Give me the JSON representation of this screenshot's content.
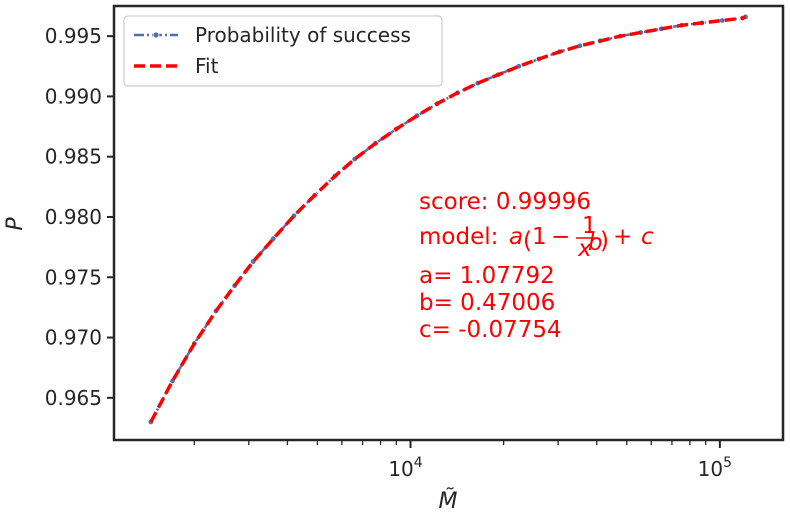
{
  "chart_data": {
    "type": "line",
    "xlabel": "M̃",
    "ylabel": "P",
    "xscale": "log",
    "xlim": [
      1100,
      160000
    ],
    "ylim": [
      0.9615,
      0.9975
    ],
    "x_ticks": [
      10000,
      100000
    ],
    "x_tick_labels": [
      {
        "base": "10",
        "exp": "4"
      },
      {
        "base": "10",
        "exp": "5"
      }
    ],
    "y_ticks": [
      0.965,
      0.97,
      0.975,
      0.98,
      0.985,
      0.99,
      0.995
    ],
    "y_tick_labels": [
      "0.965",
      "0.970",
      "0.975",
      "0.980",
      "0.985",
      "0.990",
      "0.995"
    ],
    "legend": {
      "placement": "top-left",
      "entries": [
        {
          "label": "Probability of success",
          "color": "#4c72b0",
          "style": "dashdot-marker"
        },
        {
          "label": "Fit",
          "color": "#ff0000",
          "style": "dashed"
        }
      ]
    },
    "series": [
      {
        "name": "Probability of success",
        "color": "#4c72b0",
        "x": [
          1448,
          1700,
          2000,
          2350,
          2700,
          3100,
          3600,
          4200,
          4900,
          5700,
          6600,
          7700,
          9000,
          10500,
          12200,
          14200,
          16500,
          19200,
          22400,
          26000,
          30300,
          35300,
          41000,
          47700,
          55500,
          64600,
          75200,
          87500,
          101800,
          118500,
          121000
        ],
        "y": [
          0.963,
          0.9664,
          0.9695,
          0.9722,
          0.9743,
          0.9763,
          0.9782,
          0.9801,
          0.9818,
          0.9834,
          0.9848,
          0.9861,
          0.9873,
          0.9884,
          0.9894,
          0.9903,
          0.9911,
          0.9918,
          0.9925,
          0.9931,
          0.9937,
          0.9942,
          0.9946,
          0.995,
          0.9953,
          0.9956,
          0.9959,
          0.9961,
          0.9963,
          0.9965,
          0.9966
        ]
      },
      {
        "name": "Fit",
        "color": "#ff0000",
        "x": [
          1448,
          1700,
          2000,
          2350,
          2700,
          3100,
          3600,
          4200,
          4900,
          5700,
          6600,
          7700,
          9000,
          10500,
          12200,
          14200,
          16500,
          19200,
          22400,
          26000,
          30300,
          35300,
          41000,
          47700,
          55500,
          64600,
          75200,
          87500,
          101800,
          118500,
          121000
        ],
        "y": [
          0.963,
          0.9664,
          0.9695,
          0.9722,
          0.9743,
          0.9763,
          0.9782,
          0.9801,
          0.9818,
          0.9834,
          0.9848,
          0.9861,
          0.9873,
          0.9884,
          0.9894,
          0.9903,
          0.9911,
          0.9918,
          0.9925,
          0.9931,
          0.9937,
          0.9942,
          0.9946,
          0.995,
          0.9953,
          0.9956,
          0.9959,
          0.9961,
          0.9963,
          0.9965,
          0.9966
        ]
      }
    ],
    "annotations": {
      "color": "#ff0000",
      "score": "score: 0.99996",
      "model_prefix": "model: ",
      "a": "a= 1.07792",
      "b": "b= 0.47006",
      "c": "c= -0.07754"
    }
  }
}
